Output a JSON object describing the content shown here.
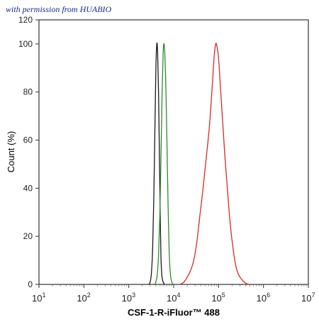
{
  "watermark": "with permission from HUABIO",
  "chart_data": {
    "type": "line",
    "xlabel": "CSF-1-R-iFluor™ 488",
    "ylabel": "Count (%)",
    "x_scale": "log",
    "xlim": [
      10,
      10000000
    ],
    "ylim": [
      0,
      110
    ],
    "x_ticks": [
      {
        "base": "10",
        "exp": "1",
        "value": 10
      },
      {
        "base": "10",
        "exp": "2",
        "value": 100
      },
      {
        "base": "10",
        "exp": "3",
        "value": 1000
      },
      {
        "base": "10",
        "exp": "4",
        "value": 10000
      },
      {
        "base": "10",
        "exp": "5",
        "value": 100000
      },
      {
        "base": "10",
        "exp": "6",
        "value": 1000000
      },
      {
        "base": "10",
        "exp": "7",
        "value": 10000000
      }
    ],
    "y_ticks": [
      "0",
      "20",
      "40",
      "60",
      "80",
      "100",
      "120"
    ],
    "grid": false,
    "series": [
      {
        "color": "#1a1a1a",
        "x": [
          2800,
          3000,
          3200,
          3400,
          3600,
          3800,
          4000,
          4200,
          4400,
          4600,
          4800,
          5000,
          5200,
          5400,
          5600,
          6000,
          6300
        ],
        "y": [
          0,
          1,
          5,
          15,
          35,
          62,
          88,
          100,
          96,
          80,
          55,
          30,
          12,
          5,
          2,
          0.5,
          0
        ]
      },
      {
        "color": "#2e8b2e",
        "x": [
          3800,
          4000,
          4300,
          4600,
          4900,
          5200,
          5500,
          5800,
          6000,
          6300,
          6700,
          7100,
          7500,
          7900,
          8300,
          8800,
          9300,
          9800
        ],
        "y": [
          0,
          1,
          4,
          12,
          28,
          52,
          78,
          95,
          100,
          97,
          82,
          58,
          33,
          15,
          6,
          2,
          0.5,
          0
        ]
      },
      {
        "color": "#d62a2a",
        "x": [
          14000,
          17000,
          20000,
          24000,
          28000,
          33000,
          38000,
          44000,
          50000,
          57000,
          64000,
          72000,
          80000,
          86000,
          92000,
          100000,
          110000,
          125000,
          140000,
          160000,
          180000,
          210000,
          240000,
          280000,
          330000,
          400000,
          480000
        ],
        "y": [
          0,
          1,
          3,
          6,
          10,
          18,
          28,
          38,
          48,
          58,
          68,
          82,
          95,
          100,
          99,
          94,
          82,
          66,
          52,
          38,
          26,
          15,
          8,
          4,
          2,
          0.5,
          0
        ]
      }
    ]
  }
}
